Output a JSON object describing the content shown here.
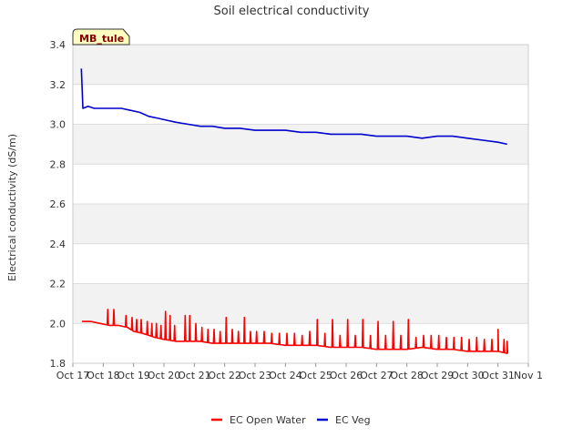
{
  "chart_data": {
    "type": "line",
    "title": "Soil electrical conductivity",
    "xlabel": "",
    "ylabel": "Electrical conductivity (dS/m)",
    "site_label": "MB_tule",
    "ylim": [
      1.8,
      3.4
    ],
    "yticks": [
      "1.8",
      "2.0",
      "2.2",
      "2.4",
      "2.6",
      "2.8",
      "3.0",
      "3.2",
      "3.4"
    ],
    "xlim": [
      0,
      15
    ],
    "xticks": [
      "Oct 17",
      "Oct 18",
      "Oct 19",
      "Oct 20",
      "Oct 21",
      "Oct 22",
      "Oct 23",
      "Oct 24",
      "Oct 25",
      "Oct 26",
      "Oct 27",
      "Oct 28",
      "Oct 29",
      "Oct 30",
      "Oct 31",
      "Nov 1"
    ],
    "legend_position": "bottom-center",
    "grid": true,
    "series": [
      {
        "name": "EC Open Water",
        "color": "#ff0000",
        "x": [
          0.3,
          0.6,
          0.9,
          1.2,
          1.5,
          1.8,
          2.0,
          2.3,
          2.7,
          3.0,
          3.4,
          3.8,
          4.2,
          4.6,
          5.0,
          5.5,
          6.0,
          6.5,
          7.0,
          7.5,
          8.0,
          8.5,
          9.0,
          9.5,
          10.0,
          10.5,
          11.0,
          11.5,
          12.0,
          12.5,
          13.0,
          13.5,
          14.0,
          14.3
        ],
        "values": [
          2.01,
          2.01,
          2.0,
          1.99,
          1.99,
          1.98,
          1.96,
          1.95,
          1.93,
          1.92,
          1.91,
          1.91,
          1.91,
          1.9,
          1.9,
          1.9,
          1.9,
          1.9,
          1.89,
          1.89,
          1.89,
          1.88,
          1.88,
          1.88,
          1.87,
          1.87,
          1.87,
          1.88,
          1.87,
          1.87,
          1.86,
          1.86,
          1.86,
          1.85
        ],
        "spikes": [
          [
            1.15,
            2.07
          ],
          [
            1.35,
            2.07
          ],
          [
            1.75,
            2.04
          ],
          [
            1.95,
            2.03
          ],
          [
            2.1,
            2.02
          ],
          [
            2.25,
            2.02
          ],
          [
            2.45,
            2.01
          ],
          [
            2.6,
            2.0
          ],
          [
            2.75,
            2.0
          ],
          [
            2.9,
            1.99
          ],
          [
            3.05,
            2.06
          ],
          [
            3.2,
            2.04
          ],
          [
            3.35,
            1.99
          ],
          [
            3.7,
            2.04
          ],
          [
            3.85,
            2.04
          ],
          [
            4.05,
            2.0
          ],
          [
            4.25,
            1.98
          ],
          [
            4.45,
            1.97
          ],
          [
            4.65,
            1.97
          ],
          [
            4.85,
            1.96
          ],
          [
            5.05,
            2.03
          ],
          [
            5.25,
            1.97
          ],
          [
            5.45,
            1.96
          ],
          [
            5.65,
            2.03
          ],
          [
            5.85,
            1.96
          ],
          [
            6.05,
            1.96
          ],
          [
            6.3,
            1.96
          ],
          [
            6.55,
            1.95
          ],
          [
            6.8,
            1.95
          ],
          [
            7.05,
            1.95
          ],
          [
            7.3,
            1.95
          ],
          [
            7.55,
            1.94
          ],
          [
            7.8,
            1.96
          ],
          [
            8.05,
            2.02
          ],
          [
            8.3,
            1.95
          ],
          [
            8.55,
            2.02
          ],
          [
            8.8,
            1.94
          ],
          [
            9.05,
            2.02
          ],
          [
            9.3,
            1.94
          ],
          [
            9.55,
            2.02
          ],
          [
            9.8,
            1.94
          ],
          [
            10.05,
            2.01
          ],
          [
            10.3,
            1.94
          ],
          [
            10.55,
            2.01
          ],
          [
            10.8,
            1.94
          ],
          [
            11.05,
            2.02
          ],
          [
            11.3,
            1.93
          ],
          [
            11.55,
            1.94
          ],
          [
            11.8,
            1.94
          ],
          [
            12.05,
            1.94
          ],
          [
            12.3,
            1.93
          ],
          [
            12.55,
            1.93
          ],
          [
            12.8,
            1.93
          ],
          [
            13.05,
            1.92
          ],
          [
            13.3,
            1.93
          ],
          [
            13.55,
            1.92
          ],
          [
            13.8,
            1.92
          ],
          [
            14.0,
            1.97
          ],
          [
            14.2,
            1.92
          ],
          [
            14.3,
            1.91
          ]
        ]
      },
      {
        "name": "EC Veg",
        "color": "#0000cc",
        "x": [
          0.28,
          0.3,
          0.33,
          0.5,
          0.7,
          1.0,
          1.3,
          1.6,
          1.9,
          2.2,
          2.5,
          2.8,
          3.1,
          3.4,
          3.8,
          4.2,
          4.6,
          5.0,
          5.5,
          6.0,
          6.5,
          7.0,
          7.5,
          8.0,
          8.5,
          9.0,
          9.5,
          10.0,
          10.5,
          11.0,
          11.5,
          12.0,
          12.5,
          13.0,
          13.5,
          14.0,
          14.3
        ],
        "values": [
          3.28,
          3.2,
          3.08,
          3.09,
          3.08,
          3.08,
          3.08,
          3.08,
          3.07,
          3.06,
          3.04,
          3.03,
          3.02,
          3.01,
          3.0,
          2.99,
          2.99,
          2.98,
          2.98,
          2.97,
          2.97,
          2.97,
          2.96,
          2.96,
          2.95,
          2.95,
          2.95,
          2.94,
          2.94,
          2.94,
          2.93,
          2.94,
          2.94,
          2.93,
          2.92,
          2.91,
          2.9
        ]
      }
    ]
  }
}
